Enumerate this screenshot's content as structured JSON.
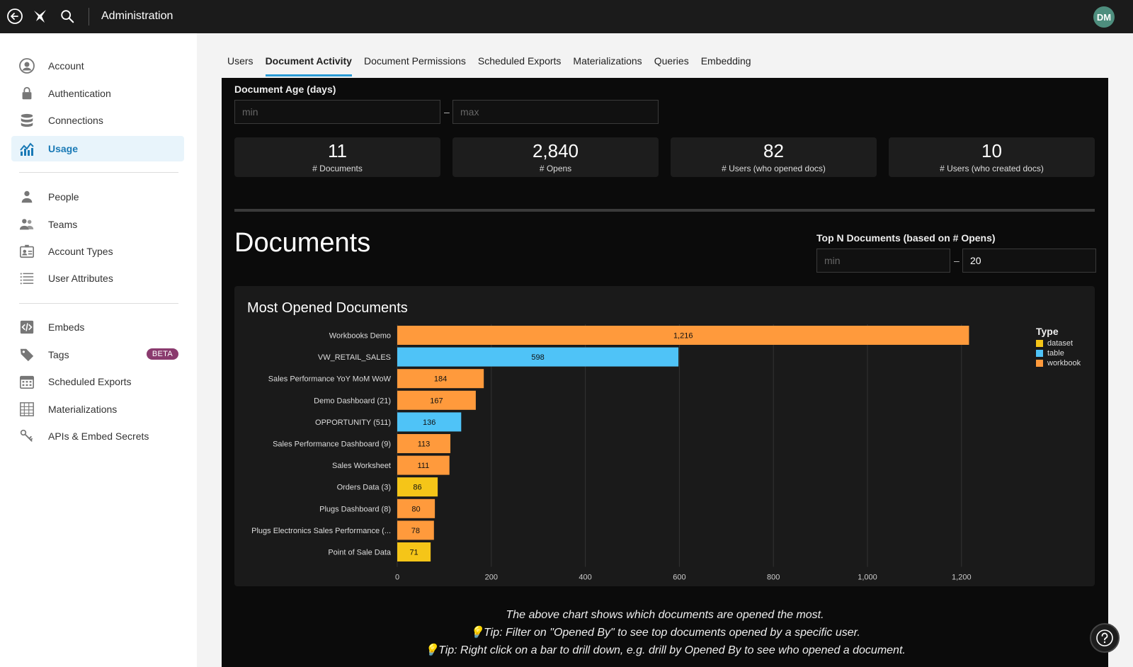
{
  "topbar": {
    "title": "Administration",
    "avatar_initials": "DM"
  },
  "sidebar": {
    "group1": [
      {
        "label": "Account",
        "icon": "user-circle-icon"
      },
      {
        "label": "Authentication",
        "icon": "lock-icon"
      },
      {
        "label": "Connections",
        "icon": "database-icon"
      },
      {
        "label": "Usage",
        "icon": "usage-chart-icon",
        "active": true
      }
    ],
    "group2": [
      {
        "label": "People",
        "icon": "person-icon"
      },
      {
        "label": "Teams",
        "icon": "teams-icon"
      },
      {
        "label": "Account Types",
        "icon": "id-badge-icon"
      },
      {
        "label": "User Attributes",
        "icon": "list-icon"
      }
    ],
    "group3": [
      {
        "label": "Embeds",
        "icon": "code-icon"
      },
      {
        "label": "Tags",
        "icon": "tag-icon",
        "badge": "BETA"
      },
      {
        "label": "Scheduled Exports",
        "icon": "calendar-icon"
      },
      {
        "label": "Materializations",
        "icon": "grid-table-icon"
      },
      {
        "label": "APIs & Embed Secrets",
        "icon": "key-icon"
      }
    ]
  },
  "tabs": [
    {
      "label": "Users"
    },
    {
      "label": "Document Activity",
      "active": true
    },
    {
      "label": "Document Permissions"
    },
    {
      "label": "Scheduled Exports"
    },
    {
      "label": "Materializations"
    },
    {
      "label": "Queries"
    },
    {
      "label": "Embedding"
    }
  ],
  "filters": {
    "age_label": "Document Age (days)",
    "age_min_placeholder": "min",
    "age_max_placeholder": "max",
    "range_sep": "–",
    "topn_label": "Top N Documents (based on # Opens)",
    "topn_min_placeholder": "min",
    "topn_max_value": "20"
  },
  "kpis": [
    {
      "value": "11",
      "label": "# Documents"
    },
    {
      "value": "2,840",
      "label": "# Opens"
    },
    {
      "value": "82",
      "label": "# Users (who opened docs)"
    },
    {
      "value": "10",
      "label": "# Users (who created docs)"
    }
  ],
  "section_title": "Documents",
  "chart_data": {
    "type": "bar",
    "orientation": "horizontal",
    "title": "Most Opened Documents",
    "categories": [
      "Workbooks Demo",
      "VW_RETAIL_SALES",
      "Sales Performance YoY MoM WoW",
      "Demo Dashboard (21)",
      "OPPORTUNITY (511)",
      "Sales Performance Dashboard (9)",
      "Sales Worksheet",
      "Orders Data (3)",
      "Plugs Dashboard (8)",
      "Plugs Electronics Sales Performance (...",
      "Point of Sale Data"
    ],
    "values": [
      1216,
      598,
      184,
      167,
      136,
      113,
      111,
      86,
      80,
      78,
      71
    ],
    "value_labels": [
      "1,216",
      "598",
      "184",
      "167",
      "136",
      "113",
      "111",
      "86",
      "80",
      "78",
      "71"
    ],
    "types": [
      "workbook",
      "table",
      "workbook",
      "workbook",
      "table",
      "workbook",
      "workbook",
      "dataset",
      "workbook",
      "workbook",
      "dataset"
    ],
    "xlim": [
      0,
      1200
    ],
    "xticks": [
      0,
      200,
      400,
      600,
      800,
      1000,
      1200
    ],
    "xtick_labels": [
      "0",
      "200",
      "400",
      "600",
      "800",
      "1,000",
      "1,200"
    ],
    "grid": true,
    "legend": {
      "title": "Type",
      "placement": "top-right",
      "entries": [
        {
          "name": "dataset",
          "color": "#f5c518"
        },
        {
          "name": "table",
          "color": "#4fc3f7"
        },
        {
          "name": "workbook",
          "color": "#ff9a3c"
        }
      ]
    }
  },
  "notes": [
    "The above chart shows which documents are opened the most.",
    "💡Tip: Filter on \"Opened By\" to see top documents opened by a specific user.",
    "💡Tip: Right click on a bar to drill down, e.g. drill by Opened By to see who opened a document."
  ]
}
